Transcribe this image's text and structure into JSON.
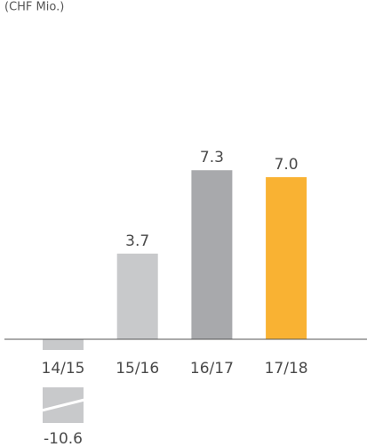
{
  "chart_data": {
    "type": "bar",
    "subtitle": "(CHF Mio.)",
    "categories": [
      "14/15",
      "15/16",
      "16/17",
      "17/18"
    ],
    "values": [
      -10.6,
      3.7,
      7.3,
      7.0
    ],
    "value_labels": [
      "-10.6",
      "3.7",
      "7.3",
      "7.0"
    ],
    "colors": [
      "#c8c9cb",
      "#c8c9cb",
      "#a8a9ac",
      "#f9b233"
    ]
  }
}
